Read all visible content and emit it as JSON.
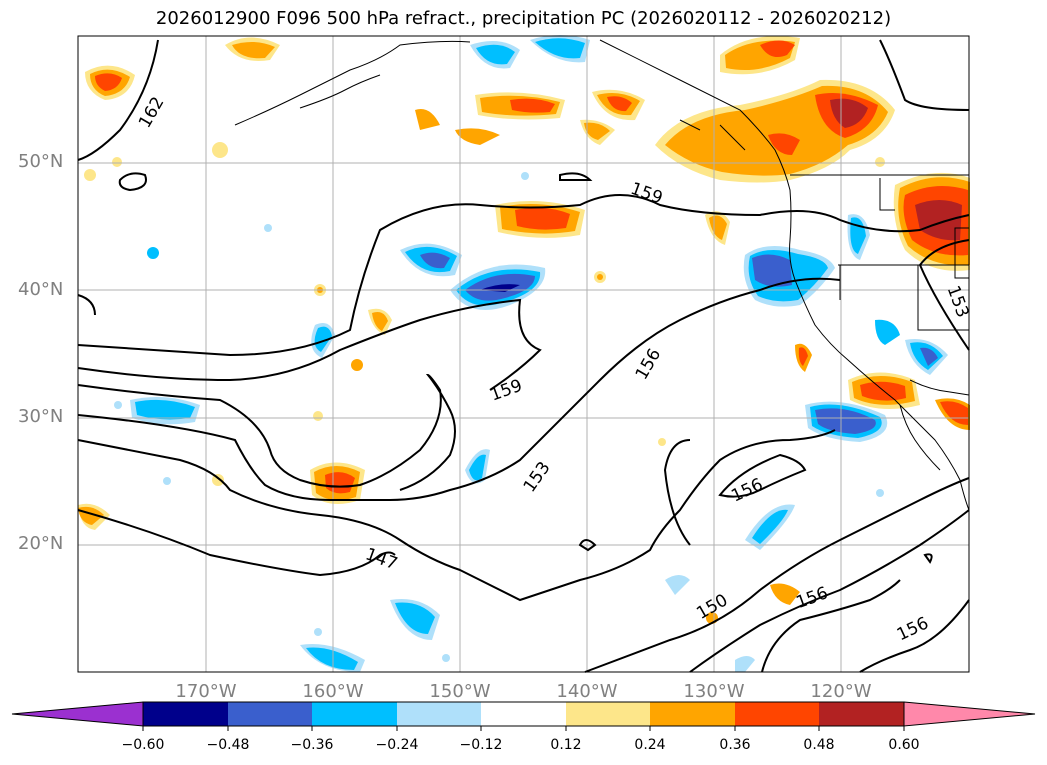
{
  "title": "2026012900 F096 500 hPa refract., precipitation PC (2026020112 - 2026020212)",
  "lat_labels": [
    "50°N",
    "40°N",
    "30°N",
    "20°N"
  ],
  "lon_labels": [
    "170°W",
    "160°W",
    "150°W",
    "140°W",
    "130°W",
    "120°W"
  ],
  "contour_labels": [
    "162",
    "159",
    "159",
    "156",
    "153",
    "156",
    "153",
    "147",
    "150",
    "156",
    "156"
  ],
  "colorbar": {
    "tick_labels": [
      "−0.60",
      "−0.48",
      "−0.36",
      "−0.24",
      "−0.12",
      "0.12",
      "0.24",
      "0.36",
      "0.48",
      "0.60"
    ],
    "colors": [
      "#9b30d0",
      "#00008b",
      "#3a5fcd",
      "#00bfff",
      "#afe0fa",
      "#ffffff",
      "#fde68a",
      "#ffa500",
      "#ff4500",
      "#b22222",
      "#ff88aa"
    ]
  },
  "colors": {
    "gridline": "#b0b0b0",
    "coastline": "#000000",
    "contour": "#000000"
  }
}
